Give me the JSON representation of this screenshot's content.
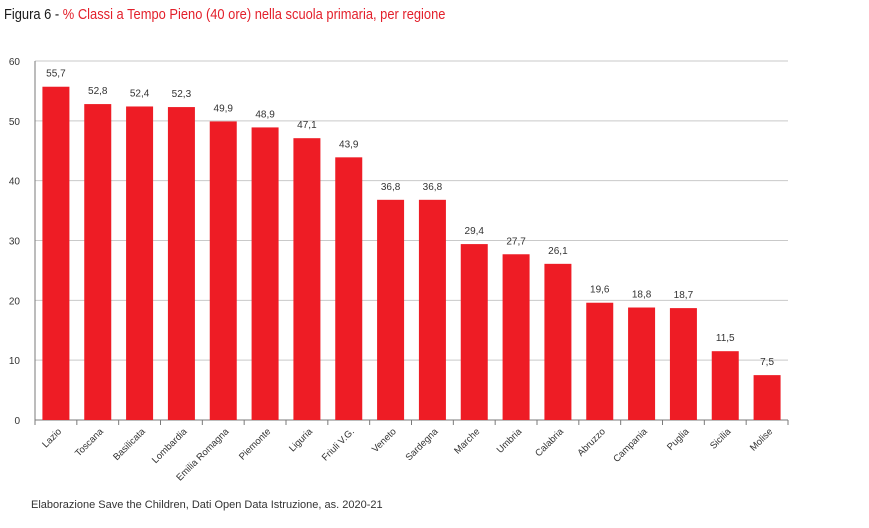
{
  "figure_label": "Figura 6 - ",
  "title": "% Classi a Tempo Pieno (40 ore) nella scuola primaria, per regione",
  "source": "Elaborazione Save the Children, Dati Open Data Istruzione, as. 2020-21",
  "colors": {
    "bar": "#ee1c25",
    "title_accent": "#e3202b",
    "grid": "#c9c9c9",
    "axis": "#7a7a7a",
    "text": "#333333"
  },
  "chart_data": {
    "type": "bar",
    "title": "% Classi a Tempo Pieno (40 ore) nella scuola primaria, per regione",
    "xlabel": "",
    "ylabel": "",
    "ylim": [
      0,
      60
    ],
    "yticks": [
      0,
      10,
      20,
      30,
      40,
      50,
      60
    ],
    "grid": true,
    "categories": [
      "Lazio",
      "Toscana",
      "Basilicata",
      "Lombardia",
      "Emilia Romagna",
      "Piemonte",
      "Liguria",
      "Friuli V.G.",
      "Veneto",
      "Sardegna",
      "Marche",
      "Umbria",
      "Calabria",
      "Abruzzo",
      "Campania",
      "Puglia",
      "Sicilia",
      "Molise"
    ],
    "values": [
      55.7,
      52.8,
      52.4,
      52.3,
      49.9,
      48.9,
      47.1,
      43.9,
      36.8,
      36.8,
      29.4,
      27.7,
      26.1,
      19.6,
      18.8,
      18.7,
      11.5,
      7.5
    ],
    "value_labels": [
      "55,7",
      "52,8",
      "52,4",
      "52,3",
      "49,9",
      "48,9",
      "47,1",
      "43,9",
      "36,8",
      "36,8",
      "29,4",
      "27,7",
      "26,1",
      "19,6",
      "18,8",
      "18,7",
      "11,5",
      "7,5"
    ]
  }
}
